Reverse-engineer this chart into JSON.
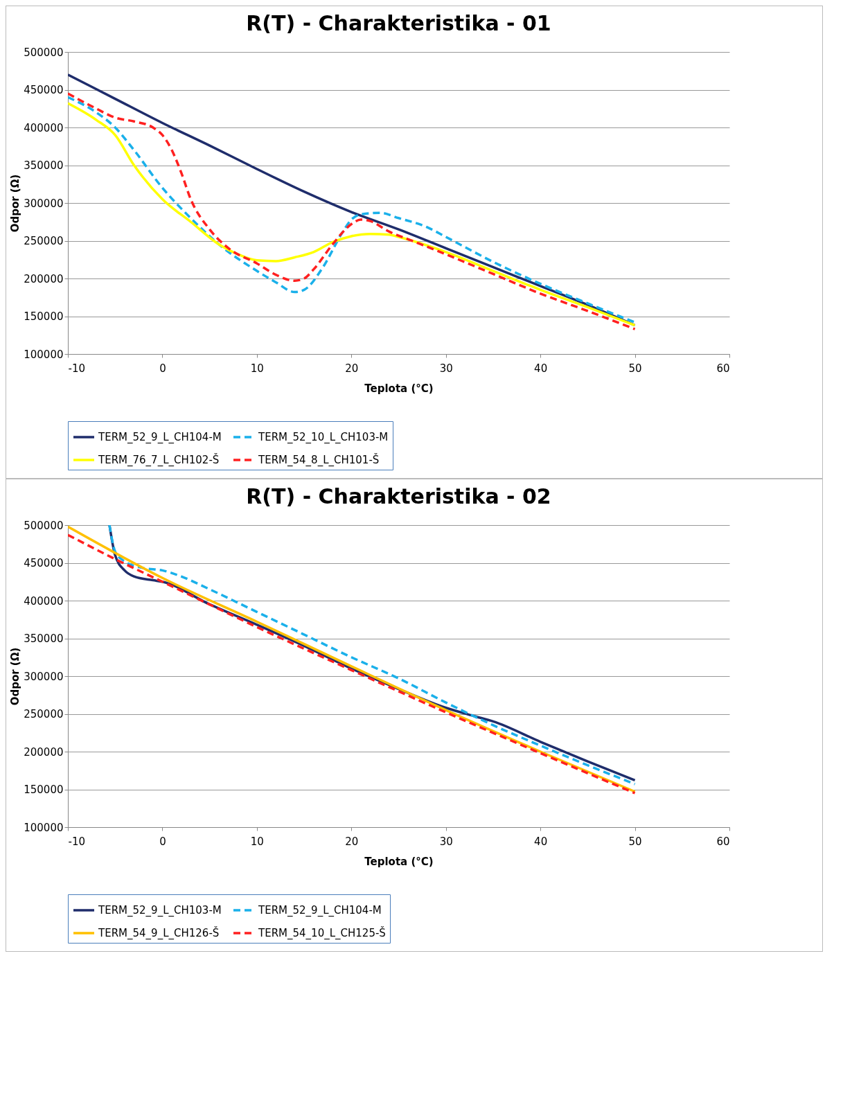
{
  "chart_data": [
    {
      "type": "line",
      "title": "R(T) - Charakteristika - 01",
      "xlabel": "Teplota (°C)",
      "ylabel": "Odpor (Ω)",
      "xlim": [
        -10,
        60
      ],
      "xticks": [
        -10,
        0,
        10,
        20,
        30,
        40,
        50,
        60
      ],
      "ylim": [
        100000,
        500000
      ],
      "yticks": [
        100000,
        150000,
        200000,
        250000,
        300000,
        350000,
        400000,
        450000,
        500000
      ],
      "grid": "y",
      "legend": "bottom",
      "series": [
        {
          "name": "TERM_52_9_L_CH104-M",
          "color": "#1f2d6b",
          "line_style": "solid",
          "x": [
            -10,
            -5,
            0,
            5,
            10,
            15,
            20,
            25,
            30,
            35,
            40,
            45,
            50
          ],
          "values": [
            470000,
            438000,
            406000,
            376000,
            345000,
            315000,
            288000,
            265000,
            240000,
            215000,
            190000,
            165000,
            138000
          ]
        },
        {
          "name": "TERM_52_10_L_CH103-M",
          "color": "#1ab0ea",
          "line_style": "dashed",
          "x": [
            -10,
            -7,
            -5,
            -3,
            0,
            3,
            6,
            10,
            12,
            14,
            15,
            17,
            19,
            20,
            21,
            23,
            25,
            28,
            30,
            35,
            40,
            45,
            50
          ],
          "values": [
            440000,
            420000,
            400000,
            370000,
            320000,
            280000,
            245000,
            210000,
            195000,
            182000,
            185000,
            215000,
            260000,
            278000,
            285000,
            287000,
            280000,
            268000,
            255000,
            222000,
            193000,
            167000,
            142000
          ]
        },
        {
          "name": "TERM_76_7_L_CH102-Š",
          "color": "#ffff00",
          "line_style": "solid",
          "x": [
            -10,
            -7,
            -5,
            -3,
            0,
            3,
            6,
            8,
            10,
            12,
            14,
            16,
            18,
            20,
            22,
            24,
            25,
            30,
            35,
            40,
            45,
            50
          ],
          "values": [
            432000,
            410000,
            390000,
            350000,
            305000,
            275000,
            245000,
            232000,
            224000,
            223000,
            228000,
            235000,
            248000,
            256000,
            259000,
            258000,
            255000,
            235000,
            210000,
            185000,
            162000,
            138000
          ]
        },
        {
          "name": "TERM_54_8_L_CH101-Š",
          "color": "#ff2020",
          "line_style": "dashed",
          "x": [
            -10,
            -7,
            -5,
            -3,
            -1,
            0,
            1,
            2,
            3,
            5,
            7,
            10,
            12,
            14,
            15,
            16,
            18,
            20,
            21,
            22,
            24,
            26,
            30,
            35,
            40,
            45,
            50
          ],
          "values": [
            445000,
            425000,
            413000,
            408000,
            400000,
            390000,
            370000,
            340000,
            305000,
            265000,
            240000,
            220000,
            205000,
            197000,
            200000,
            212000,
            245000,
            272000,
            278000,
            276000,
            262000,
            252000,
            232000,
            206000,
            180000,
            157000,
            133000
          ]
        }
      ]
    },
    {
      "type": "line",
      "title": "R(T) - Charakteristika - 02",
      "xlabel": "Teplota (°C)",
      "ylabel": "Odpor (Ω)",
      "xlim": [
        -10,
        60
      ],
      "xticks": [
        -10,
        0,
        10,
        20,
        30,
        40,
        50,
        60
      ],
      "ylim": [
        100000,
        500000
      ],
      "yticks": [
        100000,
        150000,
        200000,
        250000,
        300000,
        350000,
        400000,
        450000,
        500000
      ],
      "grid": "y",
      "legend": "bottom",
      "series": [
        {
          "name": "TERM_52_9_L_CH103-M",
          "color": "#1f2d6b",
          "line_style": "solid",
          "x": [
            -5.6,
            -5,
            -4,
            -3,
            -1,
            0,
            5,
            10,
            15,
            20,
            25,
            30,
            33,
            35,
            40,
            45,
            50
          ],
          "values": [
            500000,
            460000,
            440000,
            432000,
            427000,
            425000,
            395000,
            368000,
            340000,
            310000,
            283000,
            258000,
            247000,
            240000,
            213000,
            187000,
            162000
          ]
        },
        {
          "name": "TERM_52_9_L_CH104-M",
          "color": "#1ab0ea",
          "line_style": "dashed",
          "x": [
            -5.6,
            -5,
            -4,
            -2,
            0,
            2,
            5,
            10,
            15,
            20,
            25,
            30,
            35,
            40,
            45,
            50
          ],
          "values": [
            500000,
            465000,
            452000,
            443000,
            440000,
            432000,
            415000,
            385000,
            355000,
            325000,
            297000,
            265000,
            235000,
            208000,
            182000,
            157000
          ]
        },
        {
          "name": "TERM_54_9_L_CH126-Š",
          "color": "#ffc000",
          "line_style": "solid",
          "x": [
            -10,
            0,
            10,
            20,
            30,
            40,
            50
          ],
          "values": [
            498000,
            430000,
            372000,
            313000,
            255000,
            200000,
            147000
          ]
        },
        {
          "name": "TERM_54_10_L_CH125-Š",
          "color": "#ff2020",
          "line_style": "dashed",
          "x": [
            -10,
            -5,
            0,
            10,
            20,
            30,
            40,
            50
          ],
          "values": [
            487000,
            455000,
            425000,
            365000,
            308000,
            252000,
            198000,
            145000
          ]
        }
      ]
    }
  ]
}
